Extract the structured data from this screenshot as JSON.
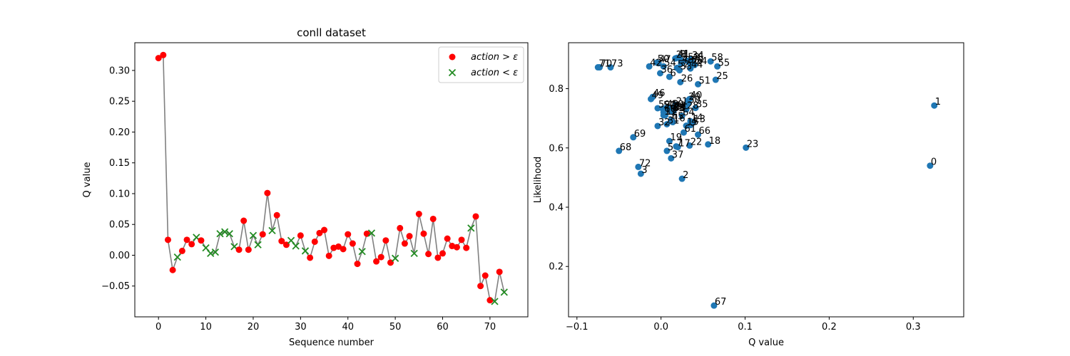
{
  "chart_data": [
    {
      "type": "line",
      "title": "conll dataset",
      "xlabel": "Sequence number",
      "ylabel": "Q value",
      "xlim": [
        -5,
        78
      ],
      "ylim": [
        -0.1,
        0.345
      ],
      "xticks": [
        0,
        10,
        20,
        30,
        40,
        50,
        60,
        70
      ],
      "yticks": [
        -0.05,
        0.0,
        0.05,
        0.1,
        0.15,
        0.2,
        0.25,
        0.3
      ],
      "ytick_labels": [
        "−0.05",
        "0.00",
        "0.05",
        "0.10",
        "0.15",
        "0.20",
        "0.25",
        "0.30"
      ],
      "line_color": "#808080",
      "legend": {
        "position": "top-right",
        "entries": [
          {
            "label": "action > ε",
            "marker": "circle",
            "color": "#ff0000"
          },
          {
            "label": "action < ε",
            "marker": "x",
            "color": "#228b22"
          }
        ]
      },
      "x": [
        0,
        1,
        2,
        3,
        4,
        5,
        6,
        7,
        8,
        9,
        10,
        11,
        12,
        13,
        14,
        15,
        16,
        17,
        18,
        19,
        20,
        21,
        22,
        23,
        24,
        25,
        26,
        27,
        28,
        29,
        30,
        31,
        32,
        33,
        34,
        35,
        36,
        37,
        38,
        39,
        40,
        41,
        42,
        43,
        44,
        45,
        46,
        47,
        48,
        49,
        50,
        51,
        52,
        53,
        54,
        55,
        56,
        57,
        58,
        59,
        60,
        61,
        62,
        63,
        64,
        65,
        66,
        67,
        68,
        69,
        70,
        71,
        72,
        73
      ],
      "values": [
        0.32,
        0.325,
        0.025,
        -0.024,
        -0.003,
        0.007,
        0.025,
        0.018,
        0.029,
        0.024,
        0.012,
        0.003,
        0.005,
        0.035,
        0.038,
        0.035,
        0.014,
        0.009,
        0.056,
        0.009,
        0.032,
        0.017,
        0.034,
        0.101,
        0.04,
        0.065,
        0.023,
        0.017,
        0.024,
        0.015,
        0.032,
        0.007,
        -0.004,
        0.022,
        0.036,
        0.041,
        -0.001,
        0.012,
        0.014,
        0.01,
        0.034,
        0.019,
        -0.014,
        0.006,
        0.035,
        0.036,
        -0.01,
        -0.003,
        0.024,
        -0.012,
        -0.005,
        0.044,
        0.019,
        0.031,
        0.003,
        0.067,
        0.035,
        0.002,
        0.059,
        -0.004,
        0.003,
        0.027,
        0.015,
        0.013,
        0.025,
        0.012,
        0.044,
        0.063,
        -0.05,
        -0.033,
        -0.073,
        -0.075,
        -0.027,
        -0.06
      ],
      "markers": [
        "o",
        "o",
        "o",
        "o",
        "x",
        "o",
        "o",
        "o",
        "x",
        "o",
        "x",
        "x",
        "x",
        "x",
        "x",
        "x",
        "x",
        "o",
        "o",
        "o",
        "x",
        "x",
        "o",
        "o",
        "x",
        "o",
        "o",
        "o",
        "x",
        "x",
        "o",
        "x",
        "o",
        "o",
        "o",
        "o",
        "o",
        "o",
        "o",
        "o",
        "o",
        "o",
        "o",
        "x",
        "o",
        "x",
        "o",
        "o",
        "o",
        "o",
        "x",
        "o",
        "o",
        "o",
        "x",
        "o",
        "o",
        "o",
        "o",
        "o",
        "o",
        "o",
        "o",
        "o",
        "o",
        "o",
        "x",
        "o",
        "o",
        "o",
        "o",
        "x",
        "o",
        "x"
      ]
    },
    {
      "type": "scatter",
      "xlabel": "Q value",
      "ylabel": "Likelihood",
      "xlim": [
        -0.11,
        0.36
      ],
      "ylim": [
        0.03,
        0.955
      ],
      "xticks": [
        -0.1,
        0.0,
        0.1,
        0.2,
        0.3
      ],
      "xtick_labels": [
        "−0.1",
        "0.0",
        "0.1",
        "0.2",
        "0.3"
      ],
      "yticks": [
        0.2,
        0.4,
        0.6,
        0.8
      ],
      "ytick_labels": [
        "0.2",
        "0.4",
        "0.6",
        "0.8"
      ],
      "point_color": "#1f77b4",
      "labels": [
        "0",
        "1",
        "2",
        "3",
        "4",
        "5",
        "6",
        "7",
        "8",
        "9",
        "10",
        "11",
        "12",
        "13",
        "14",
        "15",
        "16",
        "17",
        "18",
        "19",
        "20",
        "21",
        "22",
        "23",
        "24",
        "25",
        "26",
        "27",
        "28",
        "29",
        "30",
        "31",
        "32",
        "33",
        "34",
        "35",
        "36",
        "37",
        "38",
        "39",
        "40",
        "41",
        "42",
        "43",
        "44",
        "45",
        "46",
        "47",
        "48",
        "49",
        "50",
        "51",
        "52",
        "53",
        "54",
        "55",
        "56",
        "57",
        "58",
        "59",
        "60",
        "61",
        "62",
        "63",
        "64",
        "65",
        "66",
        "67",
        "68",
        "69",
        "70",
        "71",
        "72",
        "73"
      ],
      "x": [
        0.32,
        0.325,
        0.025,
        -0.024,
        0.035,
        0.007,
        0.01,
        0.018,
        0.022,
        0.024,
        0.012,
        0.003,
        0.005,
        0.038,
        0.035,
        0.03,
        0.014,
        0.02,
        0.056,
        0.01,
        0.032,
        0.017,
        0.034,
        0.101,
        0.04,
        0.065,
        0.023,
        0.017,
        0.03,
        0.015,
        0.032,
        0.007,
        -0.004,
        0.022,
        0.036,
        0.041,
        -0.001,
        0.012,
        0.014,
        0.01,
        0.034,
        0.019,
        -0.014,
        0.006,
        0.035,
        0.036,
        -0.01,
        -0.003,
        0.024,
        -0.012,
        -0.005,
        0.044,
        0.019,
        0.031,
        0.003,
        0.067,
        0.035,
        0.002,
        0.059,
        -0.004,
        0.003,
        0.027,
        0.015,
        0.013,
        0.025,
        0.012,
        0.044,
        0.063,
        -0.05,
        -0.033,
        -0.073,
        -0.075,
        -0.027,
        -0.06
      ],
      "y": [
        0.54,
        0.743,
        0.496,
        0.513,
        0.677,
        0.59,
        0.84,
        0.605,
        0.903,
        0.895,
        0.735,
        0.71,
        0.71,
        0.685,
        0.69,
        0.675,
        0.687,
        0.603,
        0.612,
        0.623,
        0.76,
        0.745,
        0.608,
        0.601,
        0.88,
        0.83,
        0.822,
        0.902,
        0.73,
        0.725,
        0.75,
        0.68,
        0.674,
        0.862,
        0.9,
        0.735,
        0.852,
        0.565,
        0.722,
        0.728,
        0.765,
        0.904,
        0.875,
        0.735,
        0.868,
        0.892,
        0.772,
        0.886,
        0.885,
        0.765,
        0.888,
        0.815,
        0.87,
        0.894,
        0.875,
        0.875,
        0.883,
        0.732,
        0.892,
        0.734,
        0.72,
        0.652,
        0.73,
        0.722,
        0.708,
        0.694,
        0.645,
        0.068,
        0.59,
        0.636,
        0.872,
        0.872,
        0.536,
        0.872
      ]
    }
  ]
}
